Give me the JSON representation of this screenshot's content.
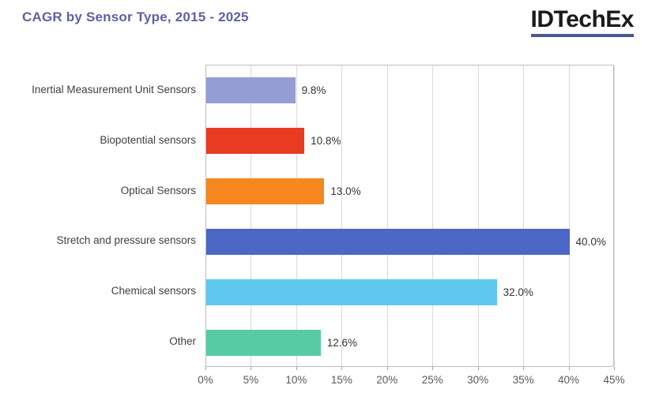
{
  "header": {
    "title": "CAGR by Sensor Type, 2015 - 2025",
    "logo_text": "IDTechEx"
  },
  "colors": {
    "title_text": "#5f5fa7",
    "logo_text": "#1a1a1a",
    "logo_underline": "#47598f",
    "plot_border": "#bdbdbd",
    "gridline": "#d9d9d9",
    "axis_text": "#595959",
    "label_text": "#3f3f3f"
  },
  "chart_data": {
    "type": "bar",
    "orientation": "horizontal",
    "title": "CAGR by Sensor Type, 2015 - 2025",
    "categories": [
      "Inertial Measurement Unit Sensors",
      "Biopotential sensors",
      "Optical Sensors",
      "Stretch and pressure sensors",
      "Chemical sensors",
      "Other"
    ],
    "values": [
      9.8,
      10.8,
      13.0,
      40.0,
      32.0,
      12.6
    ],
    "value_labels": [
      "9.8%",
      "10.8%",
      "13.0%",
      "40.0%",
      "32.0%",
      "12.6%"
    ],
    "bar_colors": [
      "#959ed2",
      "#e83b22",
      "#f6871f",
      "#4c66c5",
      "#5fc8ee",
      "#57cba4"
    ],
    "xlim": [
      0,
      45
    ],
    "x_ticks": [
      0,
      5,
      10,
      15,
      20,
      25,
      30,
      35,
      40,
      45
    ],
    "x_tick_labels": [
      "0%",
      "5%",
      "10%",
      "15%",
      "20%",
      "25%",
      "30%",
      "35%",
      "40%",
      "45%"
    ],
    "xlabel": "",
    "ylabel": "",
    "grid": true,
    "legend": false
  }
}
